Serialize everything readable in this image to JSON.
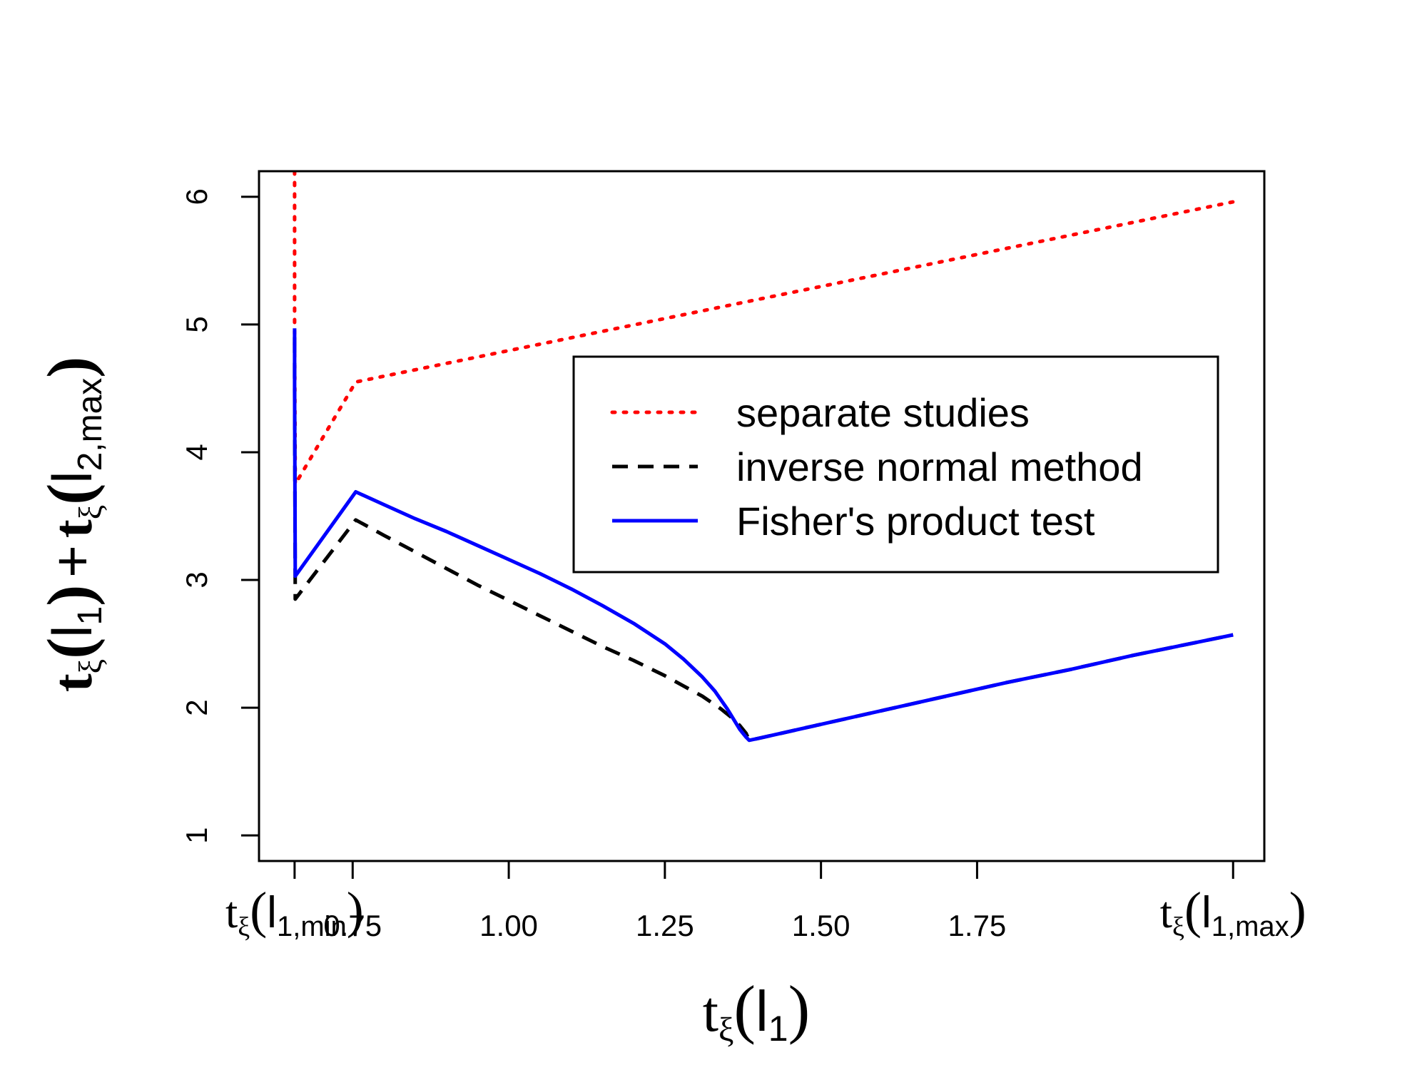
{
  "chart_data": {
    "type": "line",
    "title": "",
    "xlabel": {
      "base": "t",
      "sub": "ξ",
      "arg": "l",
      "arg_sub": "1"
    },
    "ylabel": {
      "term1": {
        "base": "t",
        "sub": "ξ",
        "arg": "l",
        "arg_sub": "1"
      },
      "plus": "+",
      "term2": {
        "base": "t",
        "sub": "ξ",
        "arg": "l",
        "arg_sub": "2,max"
      }
    },
    "xlim": [
      0.6,
      2.21
    ],
    "ylim": [
      0.8,
      6.2
    ],
    "x_ticks": [
      {
        "value": 0.657,
        "label": "",
        "math": {
          "base": "t",
          "sub": "ξ",
          "arg": "l",
          "arg_sub": "1,min"
        }
      },
      {
        "value": 0.75,
        "label": "0.75"
      },
      {
        "value": 1.0,
        "label": "1.00"
      },
      {
        "value": 1.25,
        "label": "1.25"
      },
      {
        "value": 1.5,
        "label": "1.50"
      },
      {
        "value": 1.75,
        "label": "1.75"
      },
      {
        "value": 2.16,
        "label": "",
        "math": {
          "base": "t",
          "sub": "ξ",
          "arg": "l",
          "arg_sub": "1,max"
        }
      }
    ],
    "y_ticks": [
      {
        "value": 1,
        "label": "1"
      },
      {
        "value": 2,
        "label": "2"
      },
      {
        "value": 3,
        "label": "3"
      },
      {
        "value": 4,
        "label": "4"
      },
      {
        "value": 5,
        "label": "5"
      },
      {
        "value": 6,
        "label": "6"
      }
    ],
    "series": [
      {
        "name": "separate studies",
        "color": "#ff0000",
        "style": "dotted",
        "x": [
          0.657,
          0.657,
          0.658,
          0.755,
          2.16
        ],
        "y": [
          6.2,
          4.9,
          3.75,
          4.55,
          5.96
        ]
      },
      {
        "name": "inverse normal method",
        "color": "#000000",
        "style": "dashed",
        "x": [
          0.657,
          0.657,
          0.658,
          0.755,
          0.8,
          0.85,
          0.9,
          0.95,
          1.0,
          1.05,
          1.1,
          1.15,
          1.2,
          1.25,
          1.28,
          1.31,
          1.34,
          1.36,
          1.37,
          1.38,
          1.385,
          1.4,
          1.5,
          1.6,
          1.7,
          1.8,
          1.9,
          2.0,
          2.1,
          2.16
        ],
        "y": [
          4.9,
          4.6,
          2.85,
          3.47,
          3.35,
          3.22,
          3.09,
          2.96,
          2.84,
          2.72,
          2.6,
          2.48,
          2.37,
          2.25,
          2.17,
          2.09,
          1.99,
          1.91,
          1.86,
          1.8,
          1.745,
          1.76,
          1.87,
          1.98,
          2.09,
          2.2,
          2.3,
          2.41,
          2.51,
          2.57
        ]
      },
      {
        "name": "Fisher's product test",
        "color": "#0000ff",
        "style": "solid",
        "x": [
          0.657,
          0.657,
          0.658,
          0.755,
          0.8,
          0.85,
          0.9,
          0.95,
          1.0,
          1.05,
          1.1,
          1.15,
          1.2,
          1.25,
          1.28,
          1.31,
          1.33,
          1.35,
          1.36,
          1.37,
          1.375,
          1.38,
          1.385,
          1.4,
          1.5,
          1.6,
          1.7,
          1.8,
          1.9,
          2.0,
          2.1,
          2.16
        ],
        "y": [
          4.97,
          4.5,
          3.03,
          3.69,
          3.59,
          3.48,
          3.38,
          3.27,
          3.16,
          3.05,
          2.93,
          2.8,
          2.66,
          2.5,
          2.38,
          2.24,
          2.13,
          1.99,
          1.91,
          1.83,
          1.8,
          1.77,
          1.745,
          1.76,
          1.87,
          1.98,
          2.09,
          2.2,
          2.3,
          2.41,
          2.51,
          2.57
        ]
      }
    ],
    "legend": {
      "position": "center-right",
      "entries": [
        "separate studies",
        "inverse normal method",
        "Fisher's product test"
      ]
    }
  }
}
